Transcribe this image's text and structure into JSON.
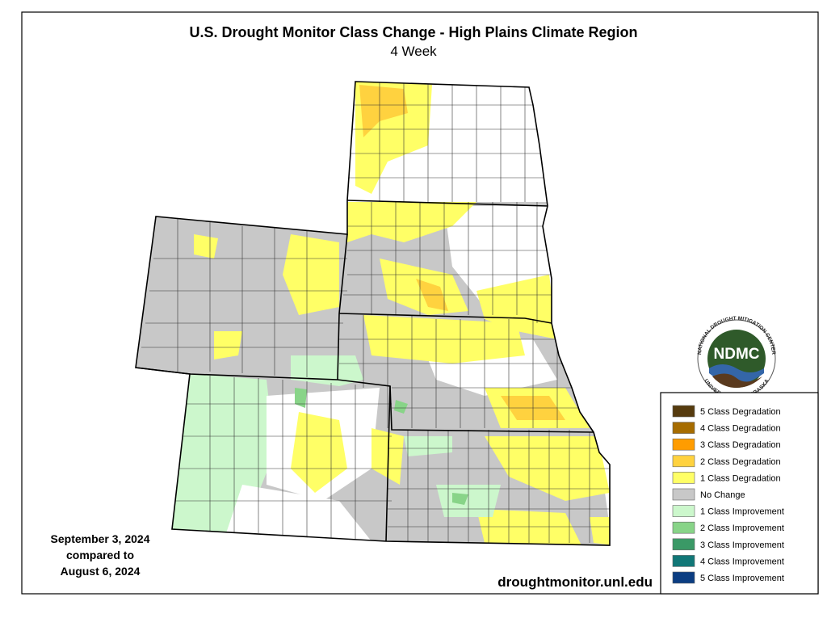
{
  "header": {
    "title": "U.S. Drought Monitor Class Change - High Plains Climate Region",
    "subtitle": "4 Week"
  },
  "date_note": [
    "September 3, 2024",
    "compared to",
    "August 6, 2024"
  ],
  "url": "droughtmonitor.unl.edu",
  "logo": {
    "text": "NDMC",
    "ring_top": "NATIONAL DROUGHT MITIGATION CENTER",
    "ring_bottom": "UNIVERSITY OF NEBRASKA"
  },
  "legend": [
    {
      "label": "5 Class Degradation",
      "color": "#563b0e"
    },
    {
      "label": "4 Class Degradation",
      "color": "#a66c00"
    },
    {
      "label": "3 Class Degradation",
      "color": "#ff9c00"
    },
    {
      "label": "2 Class Degradation",
      "color": "#ffd23f"
    },
    {
      "label": "1 Class Degradation",
      "color": "#ffff66"
    },
    {
      "label": "No Change",
      "color": "#c8c8c8"
    },
    {
      "label": "1 Class Improvement",
      "color": "#ccf7cc"
    },
    {
      "label": "2 Class Improvement",
      "color": "#88d488"
    },
    {
      "label": "3 Class Improvement",
      "color": "#3a9966"
    },
    {
      "label": "4 Class Improvement",
      "color": "#117777"
    },
    {
      "label": "5 Class Improvement",
      "color": "#0b3d82"
    }
  ]
}
